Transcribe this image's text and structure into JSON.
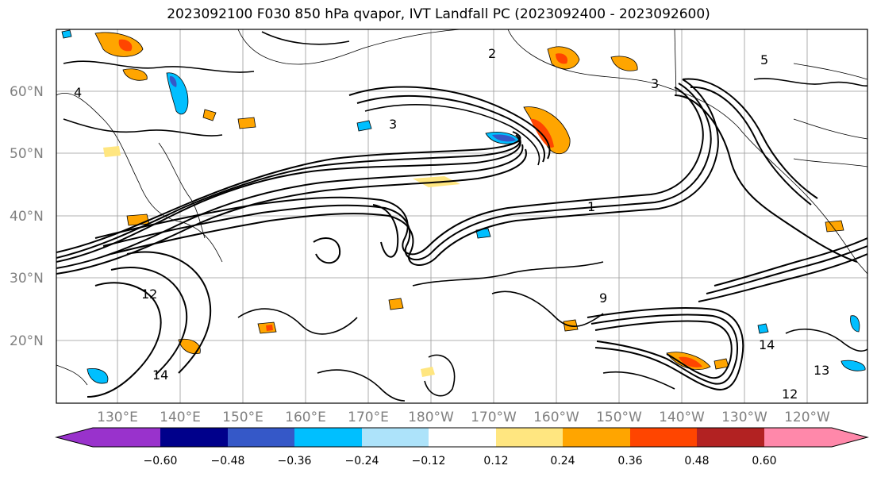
{
  "title": "2023092100 F030 850 hPa qvapor, IVT Landfall PC (2023092400 - 2023092600)",
  "map": {
    "lat_labels": [
      "60°N",
      "50°N",
      "40°N",
      "30°N",
      "20°N"
    ],
    "lon_labels": [
      "130°E",
      "140°E",
      "150°E",
      "160°E",
      "170°E",
      "180°W",
      "170°W",
      "160°W",
      "150°W",
      "140°W",
      "130°W",
      "120°W"
    ],
    "contour_labels": [
      "3",
      "4",
      "1",
      "12",
      "14",
      "9",
      "13",
      "5",
      "2",
      "14",
      "12",
      "3"
    ]
  },
  "colorbar": {
    "colors": [
      "#9932CC",
      "#00008B",
      "#3558C8",
      "#00BFFF",
      "#ADE3FA",
      "#FFFFFF",
      "#FFE680",
      "#FFA500",
      "#FF4500",
      "#B22222",
      "#FF88AA"
    ],
    "tick_labels": [
      "−0.60",
      "−0.48",
      "−0.36",
      "−0.24",
      "−0.12",
      "0.12",
      "0.24",
      "0.36",
      "0.48",
      "0.60"
    ]
  }
}
